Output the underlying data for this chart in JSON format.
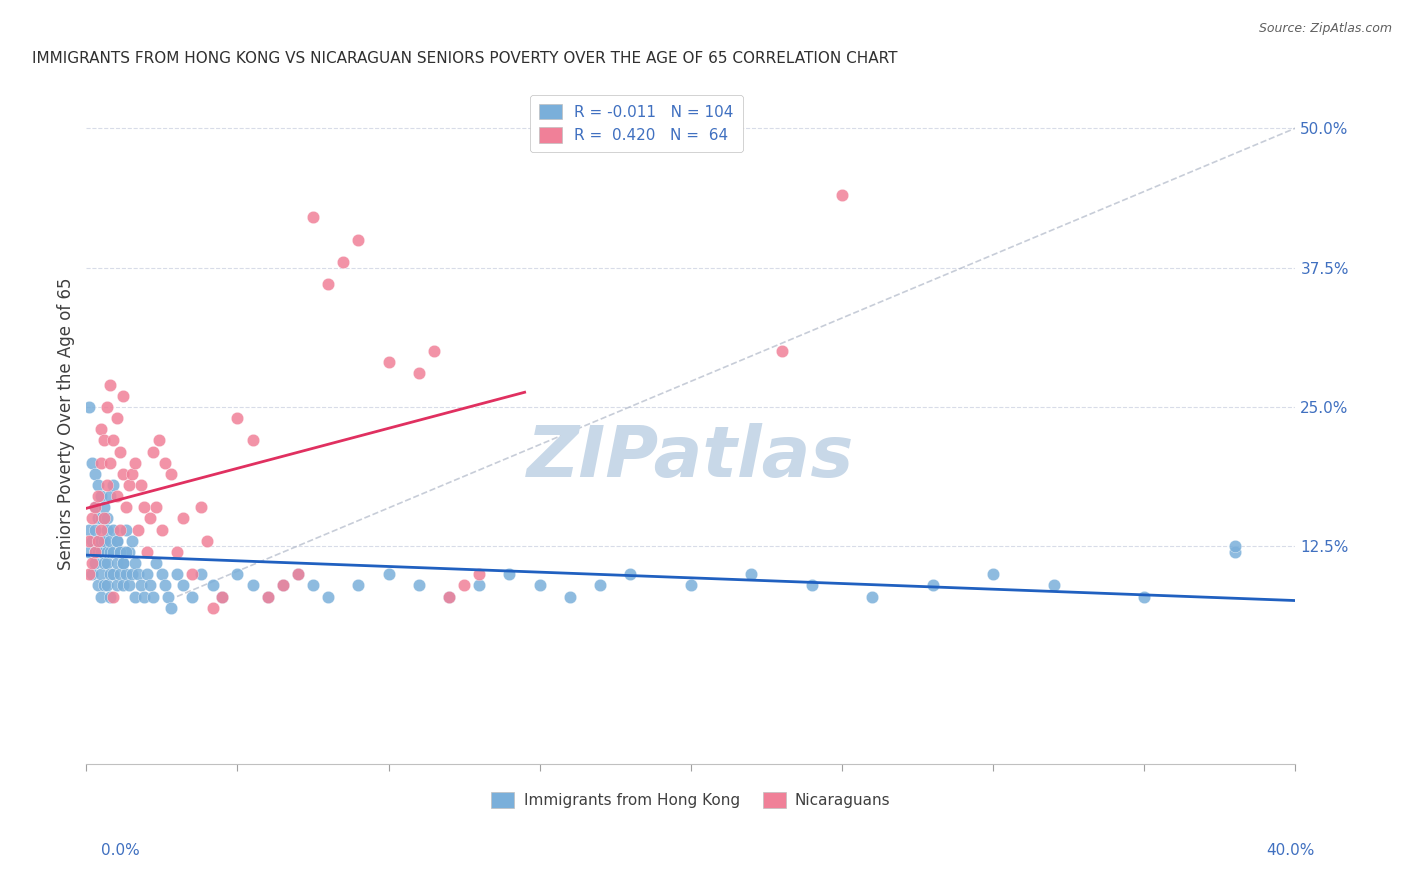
{
  "title": "IMMIGRANTS FROM HONG KONG VS NICARAGUAN SENIORS POVERTY OVER THE AGE OF 65 CORRELATION CHART",
  "source": "Source: ZipAtlas.com",
  "ylabel": "Seniors Poverty Over the Age of 65",
  "xlim": [
    0.0,
    0.4
  ],
  "ylim": [
    -0.07,
    0.54
  ],
  "blue_color": "#7aafda",
  "pink_color": "#f08098",
  "blue_line_color": "#2060c0",
  "pink_line_color": "#e03060",
  "ref_line_color": "#b0b8c8",
  "watermark": "ZIPatlas",
  "watermark_color": "#c8d8e8",
  "title_color": "#303030",
  "source_color": "#606060",
  "axis_label_color": "#4070c0",
  "grid_color": "#d8dce8",
  "blue_R": -0.011,
  "pink_R": 0.42,
  "blue_N": 104,
  "pink_N": 64,
  "blue_scatter_x": [
    0.001,
    0.001,
    0.002,
    0.002,
    0.003,
    0.003,
    0.003,
    0.003,
    0.004,
    0.004,
    0.004,
    0.004,
    0.005,
    0.005,
    0.005,
    0.005,
    0.005,
    0.006,
    0.006,
    0.006,
    0.006,
    0.007,
    0.007,
    0.007,
    0.007,
    0.008,
    0.008,
    0.008,
    0.008,
    0.009,
    0.009,
    0.009,
    0.01,
    0.01,
    0.01,
    0.011,
    0.011,
    0.012,
    0.012,
    0.013,
    0.013,
    0.014,
    0.014,
    0.015,
    0.015,
    0.016,
    0.016,
    0.017,
    0.018,
    0.019,
    0.02,
    0.021,
    0.022,
    0.023,
    0.025,
    0.026,
    0.027,
    0.028,
    0.03,
    0.032,
    0.035,
    0.038,
    0.042,
    0.045,
    0.05,
    0.055,
    0.06,
    0.065,
    0.07,
    0.075,
    0.08,
    0.09,
    0.1,
    0.11,
    0.12,
    0.13,
    0.14,
    0.15,
    0.16,
    0.17,
    0.18,
    0.2,
    0.22,
    0.24,
    0.26,
    0.28,
    0.3,
    0.32,
    0.35,
    0.38,
    0.001,
    0.002,
    0.003,
    0.004,
    0.005,
    0.006,
    0.007,
    0.008,
    0.009,
    0.01,
    0.011,
    0.012,
    0.013,
    0.38
  ],
  "blue_scatter_y": [
    0.12,
    0.14,
    0.1,
    0.13,
    0.11,
    0.12,
    0.14,
    0.16,
    0.09,
    0.12,
    0.13,
    0.15,
    0.08,
    0.1,
    0.12,
    0.13,
    0.15,
    0.09,
    0.11,
    0.13,
    0.15,
    0.09,
    0.11,
    0.12,
    0.14,
    0.1,
    0.12,
    0.13,
    0.08,
    0.1,
    0.12,
    0.14,
    0.09,
    0.11,
    0.13,
    0.1,
    0.12,
    0.09,
    0.11,
    0.1,
    0.14,
    0.09,
    0.12,
    0.1,
    0.13,
    0.08,
    0.11,
    0.1,
    0.09,
    0.08,
    0.1,
    0.09,
    0.08,
    0.11,
    0.1,
    0.09,
    0.08,
    0.07,
    0.1,
    0.09,
    0.08,
    0.1,
    0.09,
    0.08,
    0.1,
    0.09,
    0.08,
    0.09,
    0.1,
    0.09,
    0.08,
    0.09,
    0.1,
    0.09,
    0.08,
    0.09,
    0.1,
    0.09,
    0.08,
    0.09,
    0.1,
    0.09,
    0.1,
    0.09,
    0.08,
    0.09,
    0.1,
    0.09,
    0.08,
    0.12,
    0.25,
    0.2,
    0.19,
    0.18,
    0.17,
    0.16,
    0.15,
    0.17,
    0.18,
    0.13,
    0.12,
    0.11,
    0.12,
    0.125
  ],
  "pink_scatter_x": [
    0.001,
    0.001,
    0.002,
    0.002,
    0.003,
    0.003,
    0.004,
    0.004,
    0.005,
    0.005,
    0.005,
    0.006,
    0.006,
    0.007,
    0.007,
    0.008,
    0.008,
    0.009,
    0.009,
    0.01,
    0.01,
    0.011,
    0.011,
    0.012,
    0.012,
    0.013,
    0.014,
    0.015,
    0.016,
    0.017,
    0.018,
    0.019,
    0.02,
    0.021,
    0.022,
    0.023,
    0.024,
    0.025,
    0.026,
    0.028,
    0.03,
    0.032,
    0.035,
    0.038,
    0.04,
    0.042,
    0.045,
    0.05,
    0.055,
    0.06,
    0.065,
    0.07,
    0.075,
    0.08,
    0.085,
    0.09,
    0.1,
    0.11,
    0.115,
    0.12,
    0.125,
    0.13,
    0.23,
    0.25
  ],
  "pink_scatter_y": [
    0.1,
    0.13,
    0.11,
    0.15,
    0.12,
    0.16,
    0.13,
    0.17,
    0.14,
    0.2,
    0.23,
    0.15,
    0.22,
    0.18,
    0.25,
    0.2,
    0.27,
    0.22,
    0.08,
    0.17,
    0.24,
    0.14,
    0.21,
    0.19,
    0.26,
    0.16,
    0.18,
    0.19,
    0.2,
    0.14,
    0.18,
    0.16,
    0.12,
    0.15,
    0.21,
    0.16,
    0.22,
    0.14,
    0.2,
    0.19,
    0.12,
    0.15,
    0.1,
    0.16,
    0.13,
    0.07,
    0.08,
    0.24,
    0.22,
    0.08,
    0.09,
    0.1,
    0.42,
    0.36,
    0.38,
    0.4,
    0.29,
    0.28,
    0.3,
    0.08,
    0.09,
    0.1,
    0.3,
    0.44
  ],
  "ytick_positions": [
    0.125,
    0.25,
    0.375,
    0.5
  ],
  "ytick_labels": [
    "12.5%",
    "25.0%",
    "37.5%",
    "50.0%"
  ],
  "xtick_positions": [
    0.0,
    0.05,
    0.1,
    0.15,
    0.2,
    0.25,
    0.3,
    0.35,
    0.4
  ]
}
